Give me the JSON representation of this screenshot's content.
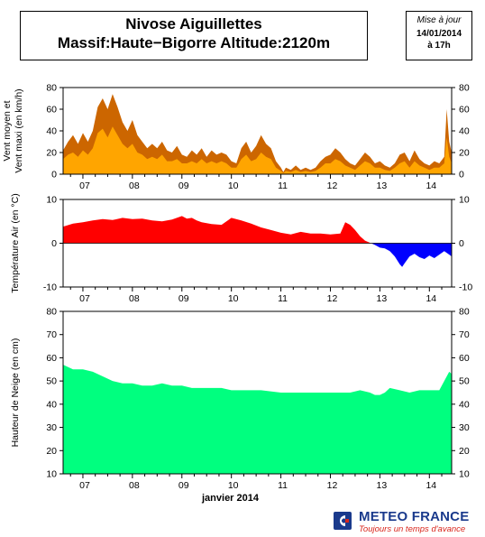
{
  "header": {
    "station": "Nivose Aiguillettes",
    "subtitle": "Massif:Haute−Bigorre Altitude:2120m"
  },
  "update": {
    "label": "Mise à jour",
    "date": "14/01/2014",
    "time": "à 17h"
  },
  "footer": {
    "brand": "METEO FRANCE",
    "tagline": "Toujours un temps d'avance"
  },
  "colors": {
    "wind_max": "#cc6600",
    "wind_mean": "#ffa500",
    "temp_positive": "#ff0000",
    "temp_negative": "#0000ff",
    "snow": "#00ff7f",
    "axis": "#000000",
    "brand": "#1a3a8c",
    "tagline": "#d9261c"
  },
  "chart_data": [
    {
      "type": "area",
      "ylabel": "Vent moyen et Vent maxi (en km/h)",
      "ylim": [
        0,
        80
      ],
      "yticks": [
        0,
        20,
        40,
        60,
        80
      ],
      "xlim": [
        6.6,
        14.45
      ],
      "xticks": [
        7,
        8,
        9,
        10,
        11,
        12,
        13,
        14
      ],
      "xticklabels": [
        "07",
        "08",
        "09",
        "10",
        "11",
        "12",
        "13",
        "14"
      ],
      "series": [
        {
          "name": "Vent maxi",
          "points": [
            [
              6.6,
              22
            ],
            [
              6.7,
              30
            ],
            [
              6.8,
              36
            ],
            [
              6.9,
              28
            ],
            [
              7.0,
              38
            ],
            [
              7.1,
              30
            ],
            [
              7.2,
              40
            ],
            [
              7.3,
              62
            ],
            [
              7.4,
              70
            ],
            [
              7.5,
              60
            ],
            [
              7.6,
              74
            ],
            [
              7.7,
              62
            ],
            [
              7.8,
              48
            ],
            [
              7.9,
              40
            ],
            [
              8.0,
              50
            ],
            [
              8.1,
              36
            ],
            [
              8.2,
              30
            ],
            [
              8.3,
              24
            ],
            [
              8.4,
              28
            ],
            [
              8.5,
              24
            ],
            [
              8.6,
              30
            ],
            [
              8.7,
              22
            ],
            [
              8.8,
              20
            ],
            [
              8.9,
              26
            ],
            [
              9.0,
              18
            ],
            [
              9.1,
              16
            ],
            [
              9.2,
              22
            ],
            [
              9.3,
              18
            ],
            [
              9.4,
              24
            ],
            [
              9.5,
              16
            ],
            [
              9.6,
              22
            ],
            [
              9.7,
              18
            ],
            [
              9.8,
              20
            ],
            [
              9.9,
              18
            ],
            [
              10.0,
              12
            ],
            [
              10.1,
              10
            ],
            [
              10.2,
              24
            ],
            [
              10.3,
              30
            ],
            [
              10.4,
              20
            ],
            [
              10.5,
              26
            ],
            [
              10.6,
              36
            ],
            [
              10.7,
              28
            ],
            [
              10.8,
              24
            ],
            [
              10.9,
              12
            ],
            [
              11.0,
              6
            ],
            [
              11.05,
              2
            ],
            [
              11.1,
              6
            ],
            [
              11.2,
              4
            ],
            [
              11.3,
              8
            ],
            [
              11.4,
              4
            ],
            [
              11.5,
              6
            ],
            [
              11.6,
              4
            ],
            [
              11.7,
              6
            ],
            [
              11.8,
              12
            ],
            [
              11.9,
              16
            ],
            [
              12.0,
              18
            ],
            [
              12.1,
              24
            ],
            [
              12.2,
              20
            ],
            [
              12.3,
              14
            ],
            [
              12.4,
              10
            ],
            [
              12.5,
              8
            ],
            [
              12.6,
              14
            ],
            [
              12.7,
              20
            ],
            [
              12.8,
              16
            ],
            [
              12.9,
              10
            ],
            [
              13.0,
              12
            ],
            [
              13.1,
              8
            ],
            [
              13.2,
              6
            ],
            [
              13.3,
              10
            ],
            [
              13.4,
              18
            ],
            [
              13.5,
              20
            ],
            [
              13.6,
              12
            ],
            [
              13.7,
              22
            ],
            [
              13.8,
              14
            ],
            [
              13.9,
              10
            ],
            [
              14.0,
              8
            ],
            [
              14.1,
              12
            ],
            [
              14.2,
              10
            ],
            [
              14.3,
              16
            ],
            [
              14.35,
              60
            ],
            [
              14.4,
              30
            ],
            [
              14.45,
              20
            ]
          ]
        },
        {
          "name": "Vent moyen",
          "points": [
            [
              6.6,
              14
            ],
            [
              6.7,
              18
            ],
            [
              6.8,
              20
            ],
            [
              6.9,
              16
            ],
            [
              7.0,
              22
            ],
            [
              7.1,
              18
            ],
            [
              7.2,
              24
            ],
            [
              7.3,
              38
            ],
            [
              7.4,
              42
            ],
            [
              7.5,
              34
            ],
            [
              7.6,
              44
            ],
            [
              7.7,
              36
            ],
            [
              7.8,
              28
            ],
            [
              7.9,
              24
            ],
            [
              8.0,
              28
            ],
            [
              8.1,
              20
            ],
            [
              8.2,
              18
            ],
            [
              8.3,
              14
            ],
            [
              8.4,
              16
            ],
            [
              8.5,
              14
            ],
            [
              8.6,
              18
            ],
            [
              8.7,
              12
            ],
            [
              8.8,
              12
            ],
            [
              8.9,
              14
            ],
            [
              9.0,
              10
            ],
            [
              9.1,
              10
            ],
            [
              9.2,
              12
            ],
            [
              9.3,
              10
            ],
            [
              9.4,
              14
            ],
            [
              9.5,
              10
            ],
            [
              9.6,
              12
            ],
            [
              9.7,
              10
            ],
            [
              9.8,
              12
            ],
            [
              9.9,
              10
            ],
            [
              10.0,
              6
            ],
            [
              10.1,
              6
            ],
            [
              10.2,
              14
            ],
            [
              10.3,
              18
            ],
            [
              10.4,
              12
            ],
            [
              10.5,
              14
            ],
            [
              10.6,
              20
            ],
            [
              10.7,
              16
            ],
            [
              10.8,
              14
            ],
            [
              10.9,
              6
            ],
            [
              11.0,
              3
            ],
            [
              11.05,
              1
            ],
            [
              11.1,
              3
            ],
            [
              11.2,
              2
            ],
            [
              11.3,
              4
            ],
            [
              11.4,
              2
            ],
            [
              11.5,
              3
            ],
            [
              11.6,
              2
            ],
            [
              11.7,
              3
            ],
            [
              11.8,
              6
            ],
            [
              11.9,
              10
            ],
            [
              12.0,
              10
            ],
            [
              12.1,
              14
            ],
            [
              12.2,
              12
            ],
            [
              12.3,
              8
            ],
            [
              12.4,
              6
            ],
            [
              12.5,
              4
            ],
            [
              12.6,
              8
            ],
            [
              12.7,
              12
            ],
            [
              12.8,
              10
            ],
            [
              12.9,
              6
            ],
            [
              13.0,
              6
            ],
            [
              13.1,
              4
            ],
            [
              13.2,
              3
            ],
            [
              13.3,
              6
            ],
            [
              13.4,
              10
            ],
            [
              13.5,
              12
            ],
            [
              13.6,
              6
            ],
            [
              13.7,
              12
            ],
            [
              13.8,
              8
            ],
            [
              13.9,
              6
            ],
            [
              14.0,
              4
            ],
            [
              14.1,
              6
            ],
            [
              14.2,
              6
            ],
            [
              14.3,
              10
            ],
            [
              14.35,
              34
            ],
            [
              14.4,
              16
            ],
            [
              14.45,
              10
            ]
          ]
        }
      ]
    },
    {
      "type": "area",
      "ylabel": "Température Air (en °C)",
      "ylim": [
        -10,
        10
      ],
      "yticks": [
        -10,
        0,
        10
      ],
      "xlim": [
        6.6,
        14.45
      ],
      "xticks": [
        7,
        8,
        9,
        10,
        11,
        12,
        13,
        14
      ],
      "xticklabels": [
        "07",
        "08",
        "09",
        "10",
        "11",
        "12",
        "13",
        "14"
      ],
      "series": [
        {
          "name": "Température",
          "points": [
            [
              6.6,
              3.8
            ],
            [
              6.8,
              4.5
            ],
            [
              7.0,
              4.8
            ],
            [
              7.2,
              5.2
            ],
            [
              7.4,
              5.5
            ],
            [
              7.6,
              5.3
            ],
            [
              7.8,
              5.8
            ],
            [
              8.0,
              5.5
            ],
            [
              8.2,
              5.6
            ],
            [
              8.4,
              5.2
            ],
            [
              8.6,
              5.0
            ],
            [
              8.8,
              5.4
            ],
            [
              9.0,
              6.2
            ],
            [
              9.1,
              5.6
            ],
            [
              9.2,
              5.8
            ],
            [
              9.3,
              5.2
            ],
            [
              9.4,
              4.8
            ],
            [
              9.6,
              4.4
            ],
            [
              9.8,
              4.2
            ],
            [
              10.0,
              5.8
            ],
            [
              10.2,
              5.2
            ],
            [
              10.4,
              4.5
            ],
            [
              10.6,
              3.6
            ],
            [
              10.8,
              3.0
            ],
            [
              11.0,
              2.4
            ],
            [
              11.2,
              2.0
            ],
            [
              11.4,
              2.6
            ],
            [
              11.6,
              2.2
            ],
            [
              11.8,
              2.2
            ],
            [
              12.0,
              2.0
            ],
            [
              12.2,
              2.2
            ],
            [
              12.3,
              4.8
            ],
            [
              12.4,
              4.2
            ],
            [
              12.5,
              3.0
            ],
            [
              12.6,
              1.6
            ],
            [
              12.7,
              0.6
            ],
            [
              12.8,
              0.1
            ],
            [
              12.9,
              -0.4
            ],
            [
              13.0,
              -1.0
            ],
            [
              13.1,
              -1.2
            ],
            [
              13.2,
              -1.8
            ],
            [
              13.3,
              -3.0
            ],
            [
              13.4,
              -4.8
            ],
            [
              13.45,
              -5.4
            ],
            [
              13.5,
              -4.6
            ],
            [
              13.6,
              -3.0
            ],
            [
              13.7,
              -2.4
            ],
            [
              13.8,
              -3.2
            ],
            [
              13.9,
              -3.6
            ],
            [
              14.0,
              -2.8
            ],
            [
              14.1,
              -3.4
            ],
            [
              14.2,
              -2.6
            ],
            [
              14.3,
              -1.8
            ],
            [
              14.4,
              -2.6
            ],
            [
              14.45,
              -3.0
            ]
          ]
        }
      ]
    },
    {
      "type": "area",
      "ylabel": "Hauteur de Neige (en cm)",
      "xlabel": "janvier 2014",
      "ylim": [
        10,
        80
      ],
      "yticks": [
        10,
        20,
        30,
        40,
        50,
        60,
        70,
        80
      ],
      "xlim": [
        6.6,
        14.45
      ],
      "xticks": [
        7,
        8,
        9,
        10,
        11,
        12,
        13,
        14
      ],
      "xticklabels": [
        "07",
        "08",
        "09",
        "10",
        "11",
        "12",
        "13",
        "14"
      ],
      "series": [
        {
          "name": "Hauteur de neige",
          "points": [
            [
              6.6,
              57
            ],
            [
              6.8,
              55
            ],
            [
              7.0,
              55
            ],
            [
              7.2,
              54
            ],
            [
              7.4,
              52
            ],
            [
              7.6,
              50
            ],
            [
              7.8,
              49
            ],
            [
              8.0,
              49
            ],
            [
              8.2,
              48
            ],
            [
              8.4,
              48
            ],
            [
              8.6,
              49
            ],
            [
              8.8,
              48
            ],
            [
              9.0,
              48
            ],
            [
              9.2,
              47
            ],
            [
              9.5,
              47
            ],
            [
              9.8,
              47
            ],
            [
              10.0,
              46
            ],
            [
              10.3,
              46
            ],
            [
              10.6,
              46
            ],
            [
              11.0,
              45
            ],
            [
              11.3,
              45
            ],
            [
              11.6,
              45
            ],
            [
              12.0,
              45
            ],
            [
              12.2,
              45
            ],
            [
              12.4,
              45
            ],
            [
              12.6,
              46
            ],
            [
              12.8,
              45
            ],
            [
              12.9,
              44
            ],
            [
              13.0,
              44
            ],
            [
              13.1,
              45
            ],
            [
              13.2,
              47
            ],
            [
              13.4,
              46
            ],
            [
              13.6,
              45
            ],
            [
              13.8,
              46
            ],
            [
              14.0,
              46
            ],
            [
              14.2,
              46
            ],
            [
              14.3,
              50
            ],
            [
              14.4,
              54
            ],
            [
              14.45,
              53
            ]
          ]
        }
      ]
    }
  ]
}
